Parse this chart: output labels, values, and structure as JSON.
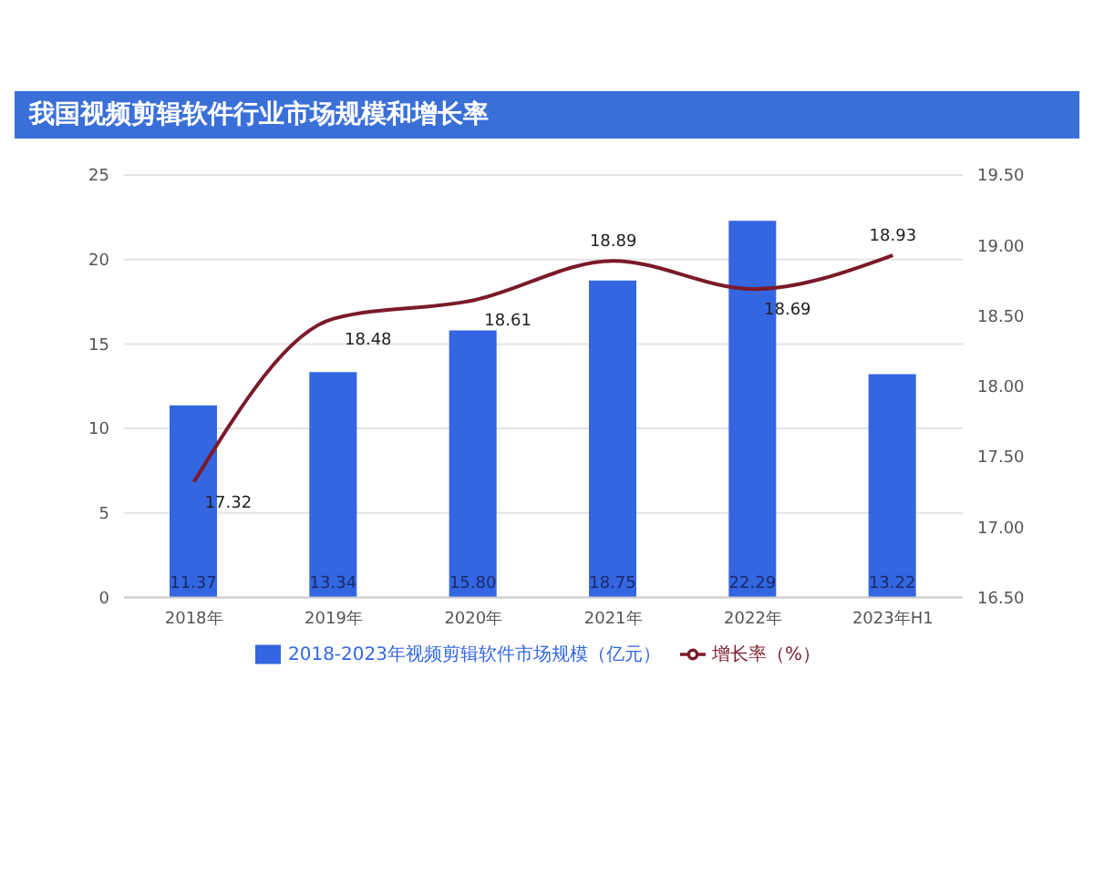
{
  "chart_data": {
    "type": "bar",
    "title": "我国视频剪辑软件行业市场规模和增长率",
    "categories": [
      "2018年",
      "2019年",
      "2020年",
      "2021年",
      "2022年",
      "2023年H1"
    ],
    "series": [
      {
        "name": "2018-2023年视频剪辑软件市场规模（亿元）",
        "color": "#3366e0",
        "values": [
          11.37,
          13.34,
          15.8,
          18.75,
          22.29,
          13.22
        ],
        "value_labels": [
          "11.37",
          "13.34",
          "15.80",
          "18.75",
          "22.29",
          "13.22"
        ]
      },
      {
        "name": "增长率（%）",
        "type": "line",
        "axis": "y2",
        "color": "#7a1a2a",
        "values": [
          17.32,
          18.48,
          18.61,
          18.89,
          18.69,
          18.93
        ],
        "value_labels": [
          "17.32",
          "18.48",
          "18.61",
          "18.89",
          "18.69",
          "18.93"
        ]
      }
    ],
    "ylim": [
      0,
      25
    ],
    "yticks": [
      0,
      5,
      10,
      15,
      20,
      25
    ],
    "y2lim": [
      16.5,
      19.5
    ],
    "y2ticks": [
      {
        "value": 16.5,
        "label": "16.50"
      },
      {
        "value": 17,
        "label": "17.00"
      },
      {
        "value": 17.5,
        "label": "17.50"
      },
      {
        "value": 18,
        "label": "18.00"
      },
      {
        "value": 18.5,
        "label": "18.50"
      },
      {
        "value": 19,
        "label": "19.00"
      },
      {
        "value": 19.5,
        "label": "19.50"
      }
    ],
    "grid": "y",
    "legend": "bottom",
    "marker": "none",
    "line_style": "solid"
  }
}
